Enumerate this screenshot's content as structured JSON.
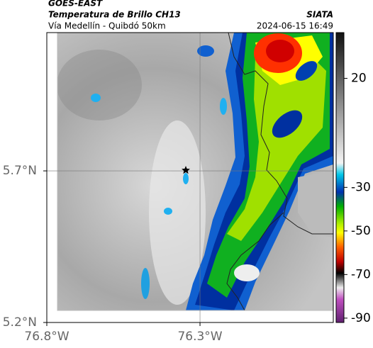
{
  "header": {
    "title": "GOES-EAST",
    "subtitle": "Temperatura de Brillo CH13",
    "route": "Vía Medellín - Quibdó 50km",
    "source": "SIATA",
    "datetime": "2024-06-15 16:49"
  },
  "map": {
    "xlim": [
      -76.8,
      -75.865
    ],
    "ylim": [
      5.2,
      6.156
    ],
    "xticks": [
      {
        "value": -76.8,
        "label": "76.8°W"
      },
      {
        "value": -76.3,
        "label": "76.3°W"
      }
    ],
    "yticks": [
      {
        "value": 5.2,
        "label": "5.2°N"
      },
      {
        "value": 5.7,
        "label": "5.7°N"
      }
    ],
    "grid": true
  },
  "colorbar": {
    "lim": [
      -92,
      41
    ],
    "ticks": [
      20,
      -30,
      -50,
      -70,
      -90
    ]
  }
}
